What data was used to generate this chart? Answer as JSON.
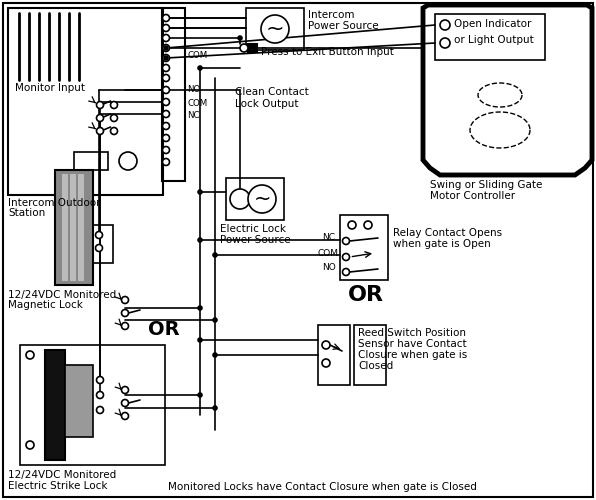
{
  "bg": "#ffffff",
  "lc": "#000000",
  "gray_dk": "#555555",
  "gray_md": "#888888",
  "gray_lt": "#cccccc",
  "texts": {
    "monitor_input": "Monitor Input",
    "intercom_station_1": "Intercom Outdoor",
    "intercom_station_2": "Station",
    "intercom_ps_1": "Intercom",
    "intercom_ps_2": "Power Source",
    "press_exit": "Press to Exit Button Input",
    "clean_contact_1": "Clean Contact",
    "clean_contact_2": "Lock Output",
    "elec_lock_1": "Electric Lock",
    "elec_lock_2": "Power Source",
    "swing_gate_1": "Swing or Sliding Gate",
    "swing_gate_2": "Motor Controller",
    "open_ind_1": "Open Indicator",
    "open_ind_2": "or Light Output",
    "relay_1": "Relay Contact Opens",
    "relay_2": "when gate is Open",
    "or1": "OR",
    "reed_1": "Reed Switch Position",
    "reed_2": "Sensor have Contact",
    "reed_3": "Closure when gate is",
    "reed_4": "Closed",
    "mag_lock_1": "12/24VDC Monitored",
    "mag_lock_2": "Magnetic Lock",
    "or2": "OR",
    "strike_1": "12/24VDC Monitored",
    "strike_2": "Electric Strike Lock",
    "bottom": "Monitored Locks have Contact Closure when gate is Closed",
    "nc": "NC",
    "com": "COM",
    "no": "NO",
    "nc2": "NC",
    "com2": "COM",
    "no2": "NO"
  }
}
